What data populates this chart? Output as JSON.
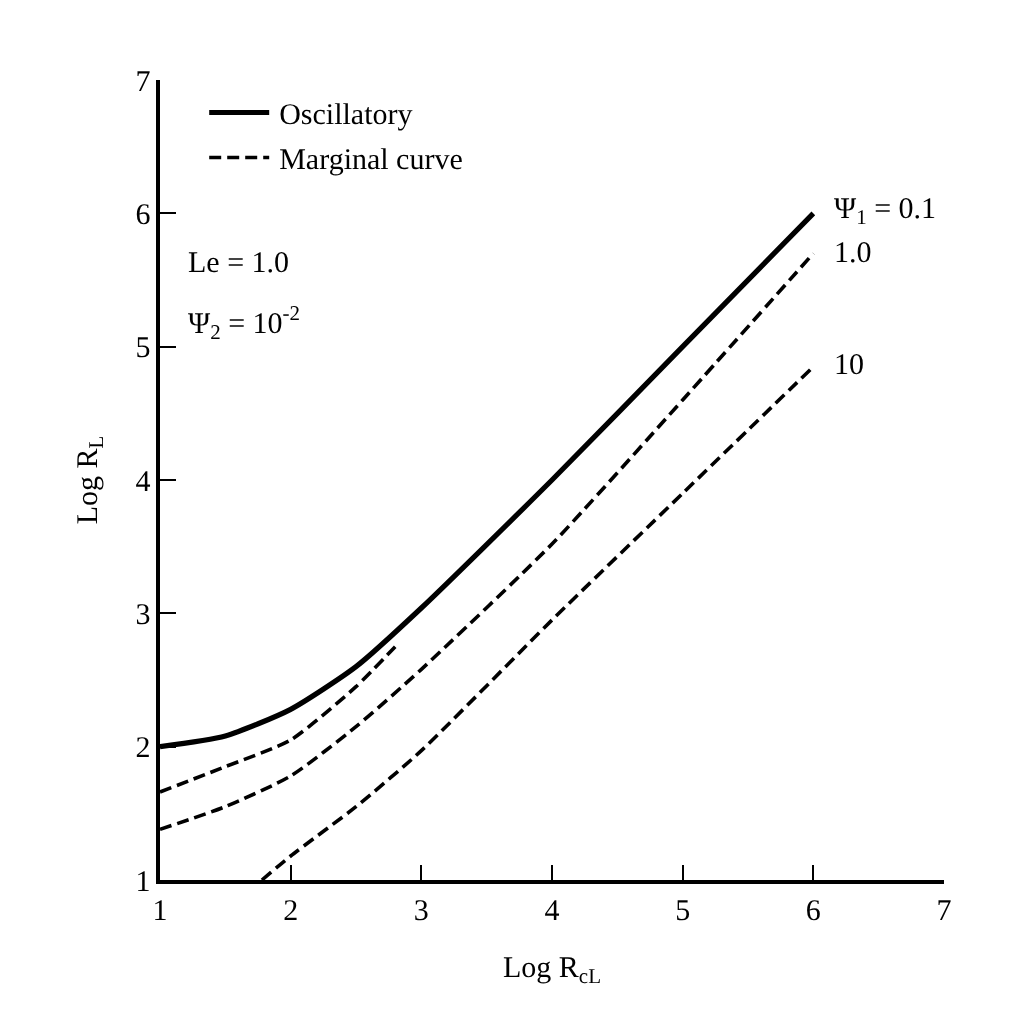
{
  "chart_data": {
    "type": "line",
    "xlabel": "Log R$_{cL}$",
    "ylabel": "Log R$_{L}$",
    "xlim": [
      1,
      7
    ],
    "ylim": [
      1,
      7
    ],
    "xticks": [
      1,
      2,
      3,
      4,
      5,
      6,
      7
    ],
    "yticks": [
      1,
      2,
      3,
      4,
      5,
      6,
      7
    ],
    "grid": false,
    "legend": "top left",
    "marker": "none",
    "series": [
      {
        "name": "Oscillatory",
        "color": "#000000",
        "line_style": "solid",
        "x": [
          1,
          1.5,
          2,
          2.5,
          3,
          4,
          5,
          6
        ],
        "values": [
          2.0,
          2.08,
          2.28,
          2.6,
          3.04,
          4.0,
          5.0,
          6.0
        ]
      },
      {
        "name": "Marginal curve",
        "color": "#000000",
        "line_style": "dashed",
        "x": [
          1,
          1.5,
          2,
          2.5,
          2.8
        ],
        "values": [
          1.66,
          1.85,
          2.05,
          2.45,
          2.75
        ]
      },
      {
        "color": "#000000",
        "line_style": "dashed",
        "x": [
          1,
          1.5,
          2,
          2.5,
          3,
          4,
          5,
          6
        ],
        "values": [
          1.38,
          1.55,
          1.78,
          2.15,
          2.58,
          3.52,
          4.6,
          5.7
        ]
      },
      {
        "color": "#000000",
        "line_style": "dashed",
        "x": [
          1.78,
          2,
          2.5,
          3,
          4,
          5,
          6
        ],
        "values": [
          1.0,
          1.18,
          1.55,
          1.97,
          2.95,
          3.9,
          4.85
        ]
      }
    ],
    "annotations": [
      "Le = 1.0",
      "Ψ$_{2}$ = 10$^{-2}$",
      "Ψ$_{1}$ = 0.1",
      "1.0",
      "10"
    ]
  }
}
